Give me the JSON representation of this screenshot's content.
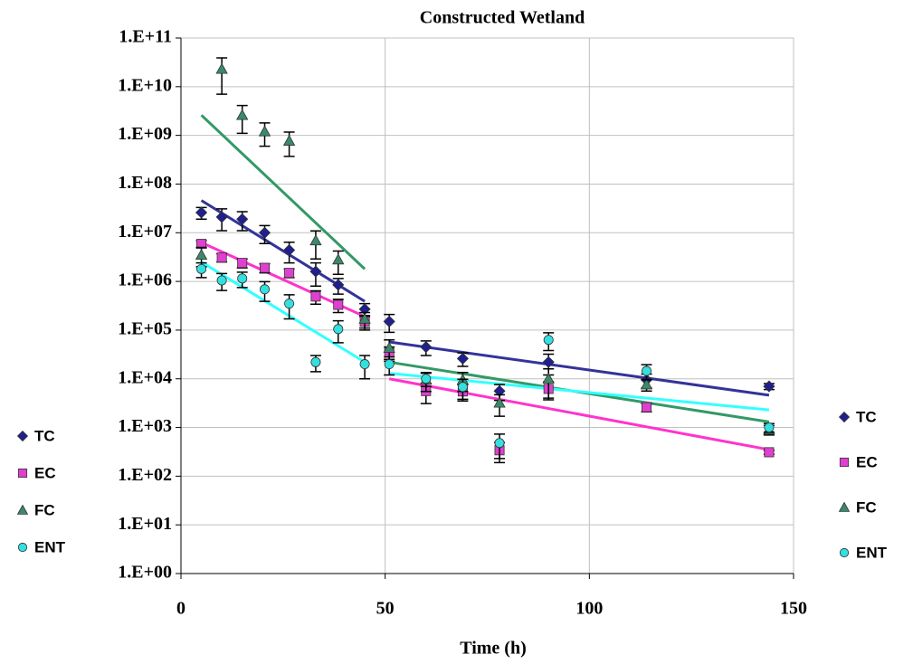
{
  "chart_data": {
    "type": "scatter",
    "title": "Constructed Wetland",
    "x_label": "Time (h)",
    "xlim": [
      0,
      150
    ],
    "xticks": [
      0,
      50,
      100,
      150
    ],
    "ylim": [
      1,
      100000000000.0
    ],
    "yscale": "log",
    "yticks": [
      {
        "value": 1,
        "label": "1.E+00"
      },
      {
        "value": 10,
        "label": "1.E+01"
      },
      {
        "value": 100,
        "label": "1.E+02"
      },
      {
        "value": 1000,
        "label": "1.E+03"
      },
      {
        "value": 10000,
        "label": "1.E+04"
      },
      {
        "value": 100000,
        "label": "1.E+05"
      },
      {
        "value": 1000000,
        "label": "1.E+06"
      },
      {
        "value": 10000000,
        "label": "1.E+07"
      },
      {
        "value": 100000000,
        "label": "1.E+08"
      },
      {
        "value": 1000000000,
        "label": "1.E+09"
      },
      {
        "value": 10000000000,
        "label": "1.E+10"
      },
      {
        "value": 100000000000,
        "label": "1.E+11"
      }
    ],
    "grid": true,
    "legend": [
      "left",
      "right"
    ],
    "x": [
      5,
      10,
      15,
      20.5,
      26.5,
      33,
      38.5,
      45,
      51,
      60,
      69,
      78,
      90,
      114,
      144
    ],
    "series": [
      {
        "name": "TC",
        "color": "#1f1f8f",
        "line_color": "#333399",
        "marker": "diamond",
        "values": [
          26000000,
          21000000,
          19000000,
          10000000,
          4400000,
          1600000,
          850000,
          270000,
          150000,
          45000,
          26000,
          5600,
          22000,
          9500,
          7000
        ],
        "errors": [
          7000000,
          10000000,
          8000000,
          4000000,
          2000000,
          800000,
          300000,
          80000,
          60000,
          15000,
          8000,
          2000,
          10000,
          3000,
          1000
        ],
        "trend": [
          {
            "x": [
              5,
              45
            ],
            "values": [
              46000000,
              390000
            ]
          },
          {
            "x": [
              51,
              144
            ],
            "values": [
              57000,
              4600
            ]
          }
        ]
      },
      {
        "name": "EC",
        "color": "#e040d0",
        "line_color": "#ff33cc",
        "marker": "square",
        "values": [
          5900000,
          3100000,
          2400000,
          1900000,
          1500000,
          490000,
          330000,
          150000,
          35000,
          5600,
          5500,
          340,
          6200,
          2600,
          310
        ],
        "errors": [
          1000000,
          600000,
          500000,
          400000,
          300000,
          150000,
          100000,
          50000,
          10000,
          2500,
          2000,
          150,
          2500,
          500,
          30
        ],
        "trend": [
          {
            "x": [
              5,
              45
            ],
            "values": [
              6300000,
              190000
            ]
          },
          {
            "x": [
              51,
              144
            ],
            "values": [
              10000,
              350
            ]
          }
        ]
      },
      {
        "name": "FC",
        "color": "#3a8a6a",
        "line_color": "#339966",
        "marker": "triangle",
        "values": [
          3500000,
          23000000000,
          2600000000,
          1200000000,
          770000000,
          6900000,
          2800000,
          170000,
          43000,
          9500,
          9500,
          3200,
          10000,
          7600,
          900
        ],
        "errors": [
          1500000,
          16000000000,
          1500000000,
          600000000,
          400000000,
          4000000,
          1400000,
          60000,
          20000,
          4000,
          4000,
          1500,
          6000,
          2000,
          200
        ],
        "trend": [
          {
            "x": [
              5,
              45
            ],
            "values": [
              2600000000,
              1800000
            ]
          },
          {
            "x": [
              51,
              144
            ],
            "values": [
              22000,
              1300
            ]
          }
        ]
      },
      {
        "name": "ENT",
        "color": "#33e0e0",
        "line_color": "#33ffff",
        "marker": "circle",
        "values": [
          1800000,
          1050000,
          1150000,
          690000,
          350000,
          22000,
          105000,
          20000,
          20000,
          10000,
          6800,
          480,
          63000,
          14500,
          1000
        ],
        "errors": [
          600000,
          400000,
          400000,
          300000,
          180000,
          8000,
          50000,
          10000,
          8000,
          3000,
          3000,
          250,
          25000,
          5000,
          200
        ],
        "trend": [
          {
            "x": [
              5,
              45
            ],
            "values": [
              2500000,
              22000
            ]
          },
          {
            "x": [
              51,
              144
            ],
            "values": [
              13000,
              2300
            ]
          }
        ]
      }
    ]
  }
}
